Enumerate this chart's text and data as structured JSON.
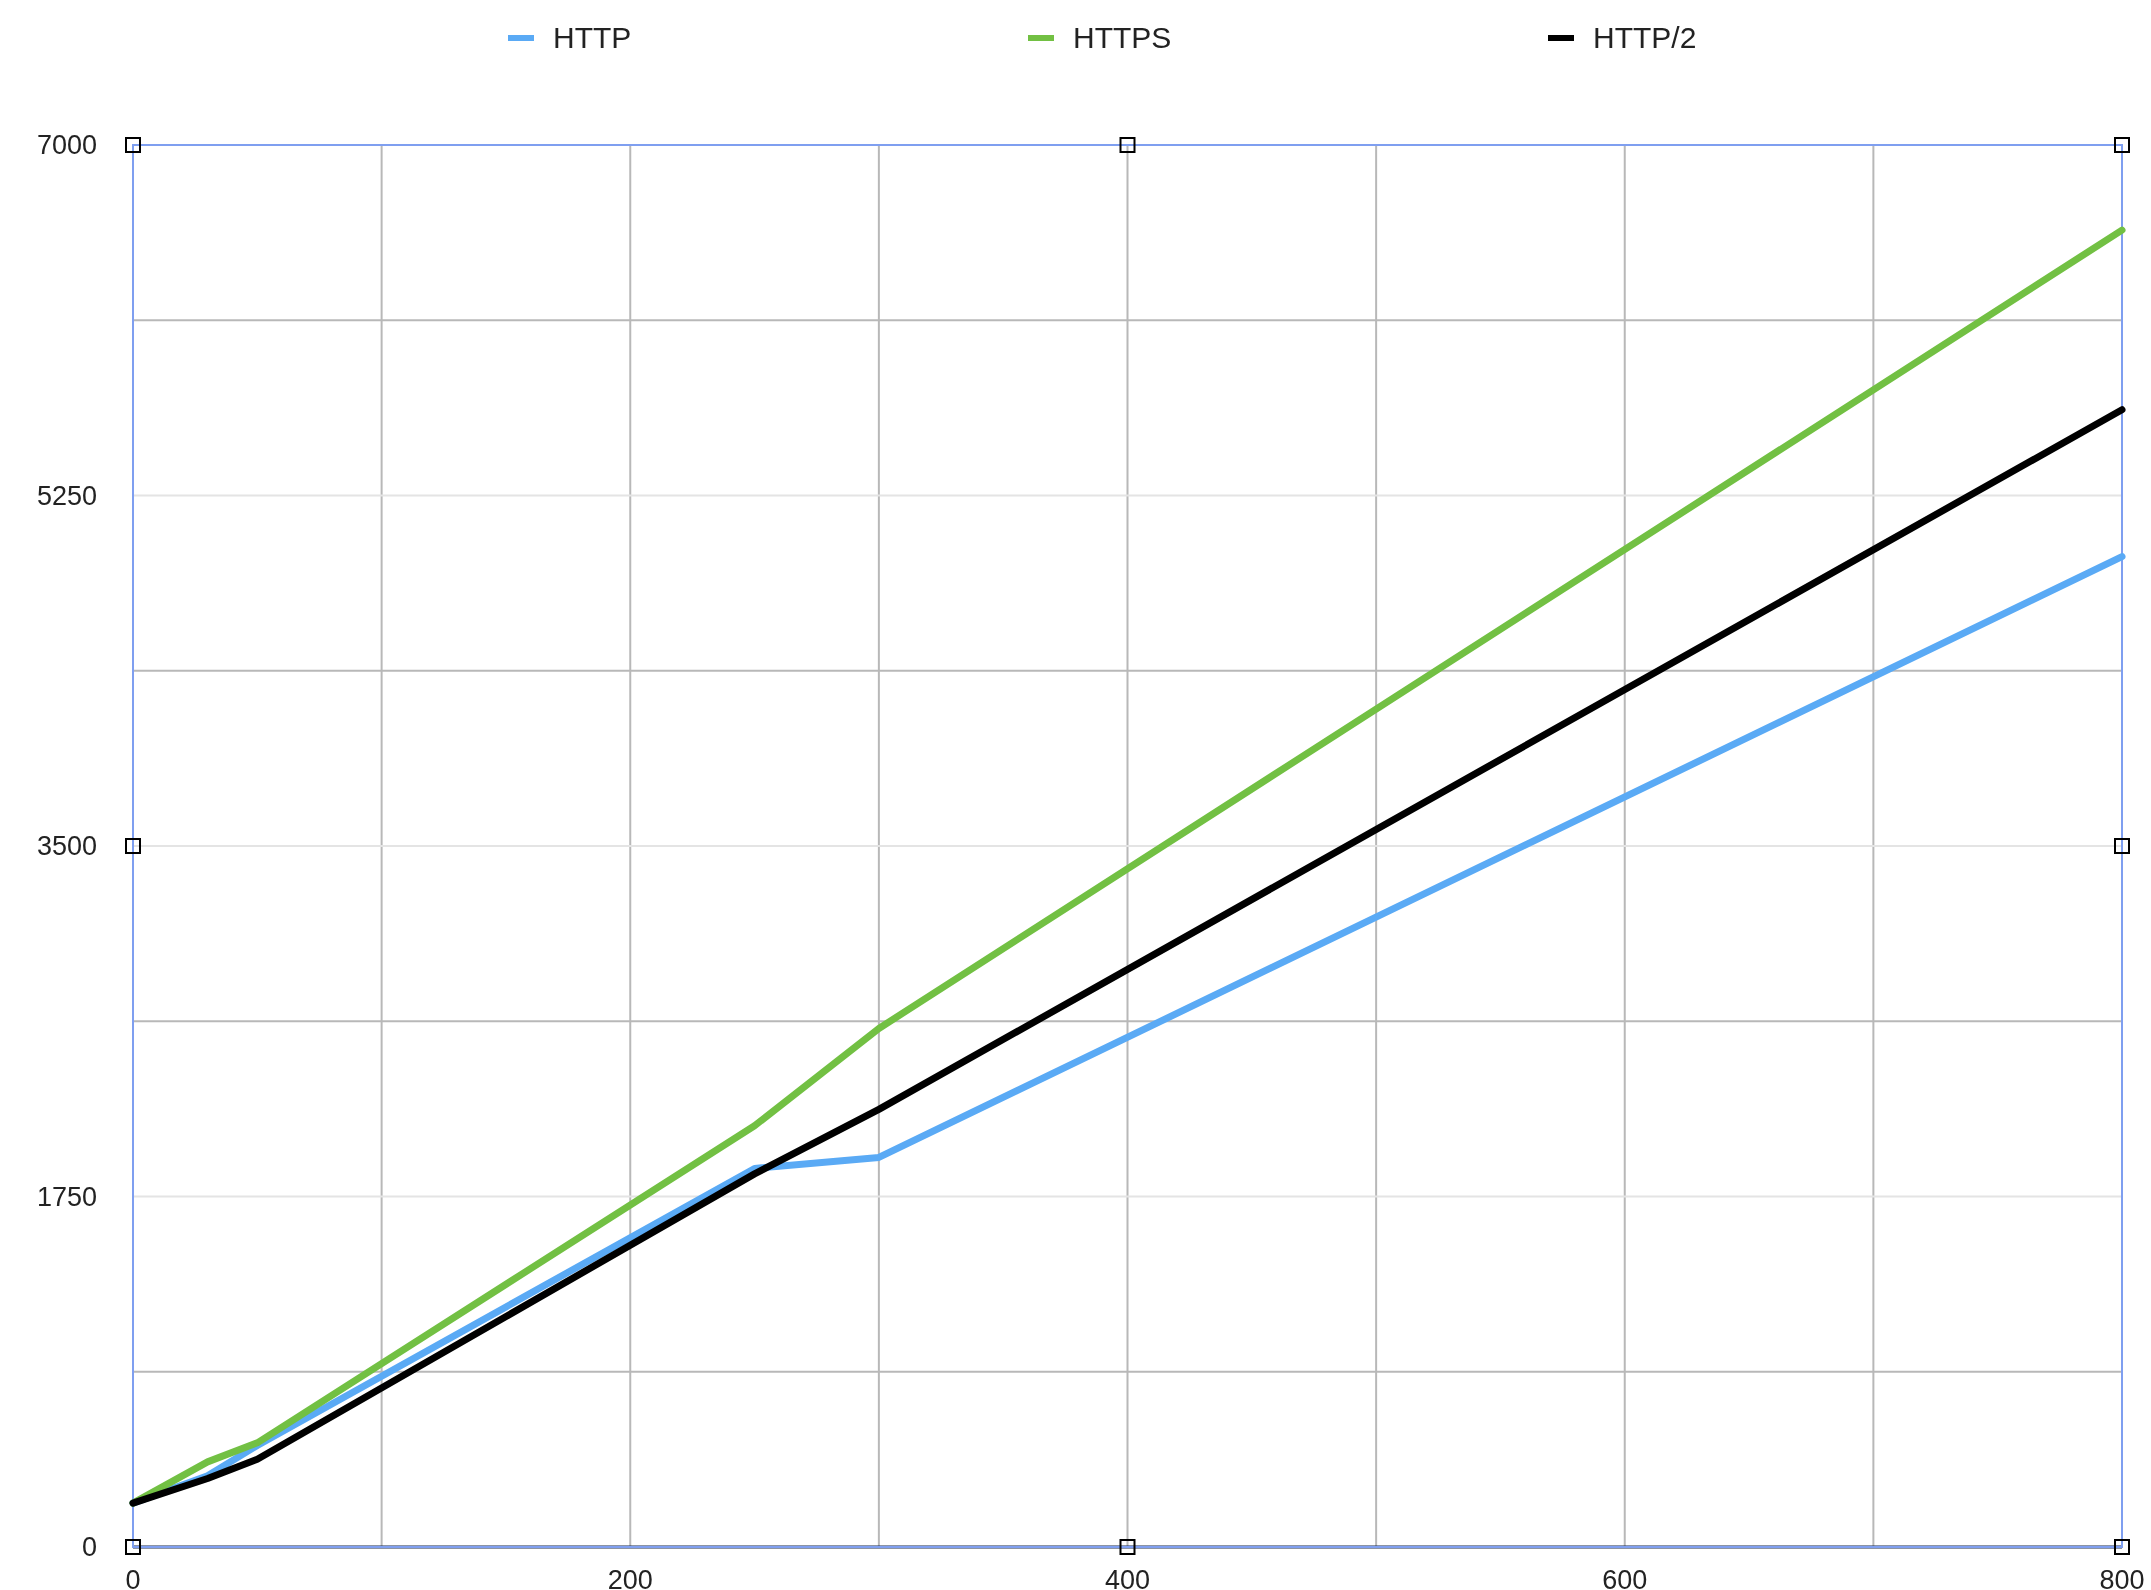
{
  "chart_data": {
    "type": "line",
    "x": [
      0,
      30,
      50,
      250,
      300,
      800
    ],
    "series": [
      {
        "name": "HTTP",
        "color": "#5aaaf5",
        "values": [
          219,
          356,
          507,
          1890,
          1945,
          4945
        ]
      },
      {
        "name": "HTTPS",
        "color": "#72c043",
        "values": [
          219,
          425,
          520,
          2103,
          2589,
          6575
        ]
      },
      {
        "name": "HTTP/2",
        "color": "#000000",
        "values": [
          219,
          342,
          438,
          1863,
          2185,
          5678
        ]
      }
    ],
    "xlim": [
      0,
      800
    ],
    "xticks": [
      0,
      {
        "value": 100,
        "label": null
      },
      200,
      {
        "value": 300,
        "label": null
      },
      400,
      {
        "value": 500,
        "label": null
      },
      600,
      {
        "value": 700,
        "label": null
      },
      800
    ],
    "ylim": [
      0,
      7000
    ],
    "yticks": [
      0,
      {
        "value": 875,
        "label": null
      },
      1750,
      {
        "value": 2625,
        "label": null
      },
      3500,
      {
        "value": 4375,
        "label": null
      },
      5250,
      {
        "value": 6125,
        "label": null
      },
      7000
    ],
    "grid": true,
    "legend": "top",
    "marker": "none",
    "line_style": "solid"
  }
}
